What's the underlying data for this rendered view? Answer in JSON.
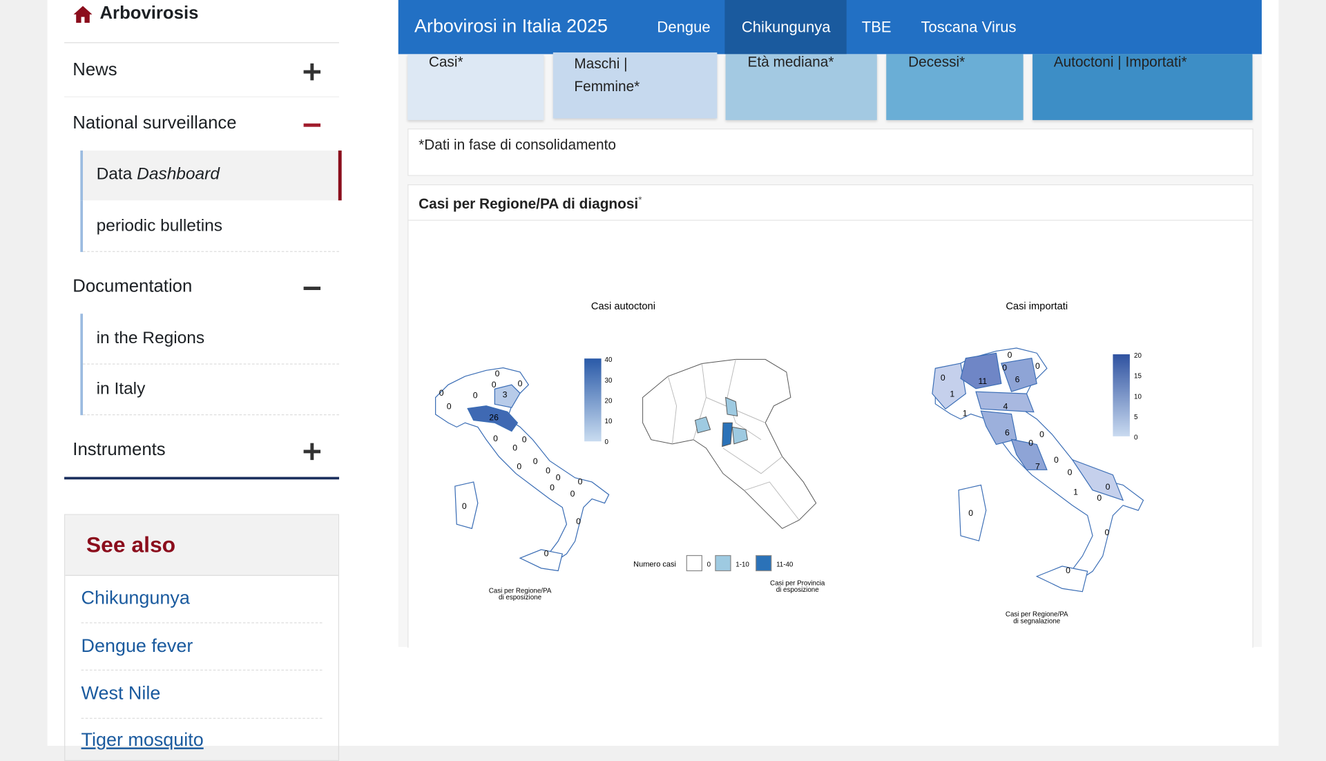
{
  "sidebar": {
    "title": "Arbovirosis",
    "menu": [
      {
        "label": "News"
      },
      {
        "label": "National surveillance",
        "items": [
          {
            "label": "Data",
            "emphasis": "Dashboard"
          },
          {
            "label": "periodic bulletins"
          }
        ]
      },
      {
        "label": "Documentation",
        "items": [
          {
            "label": "in the Regions"
          },
          {
            "label": "in Italy"
          }
        ]
      },
      {
        "label": "Instruments"
      }
    ]
  },
  "see_also": {
    "title": "See also",
    "links": [
      "Chikungunya",
      "Dengue fever",
      "West Nile",
      "Tiger mosquito"
    ]
  },
  "header": {
    "title": "Arbovirosi in Italia 2025",
    "tabs": [
      "Dengue",
      "Chikungunya",
      "TBE",
      "Toscana Virus"
    ]
  },
  "cards": [
    "Casi*",
    "Maschi | Femmine*",
    "Età mediana*",
    "Decessi*",
    "Autoctoni | Importati*"
  ],
  "note": "*Dati in fase di consolidamento",
  "panel": {
    "title": "Casi per Regione/PA di diagnosi",
    "title_mark": "*",
    "autoctoni": {
      "title": "Casi autoctoni",
      "region_labels": [
        0,
        0,
        3,
        0,
        0,
        0,
        0,
        26,
        0,
        0,
        0,
        0,
        0,
        0,
        0,
        0,
        0,
        0,
        0,
        0,
        0
      ],
      "scale_ticks": [
        40,
        30,
        20,
        10,
        0
      ],
      "region_caption": [
        "Casi per Regione/PA",
        "di esposizione"
      ],
      "province_caption": [
        "Casi per Provincia",
        "di esposizione"
      ],
      "legend": {
        "title": "Numero casi",
        "classes": [
          "0",
          "1-10",
          "11-40"
        ]
      }
    },
    "importati": {
      "title": "Casi importati",
      "region_labels": [
        0,
        0,
        0,
        0,
        11,
        6,
        1,
        1,
        4,
        6,
        0,
        0,
        0,
        7,
        0,
        1,
        0,
        0,
        0,
        0,
        0
      ],
      "scale_ticks": [
        20,
        15,
        10,
        5,
        0
      ],
      "region_caption": [
        "Casi per Regione/PA",
        "di segnalazione"
      ]
    }
  }
}
